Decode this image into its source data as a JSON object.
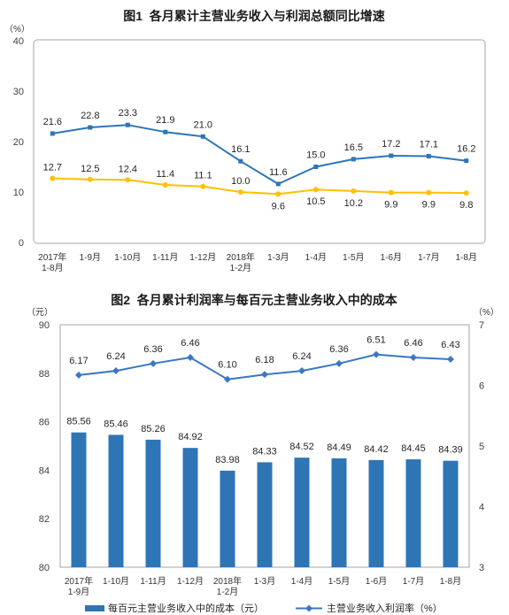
{
  "chart_data": [
    {
      "type": "line",
      "title": "图1  各月累计主营业务收入与利润总额同比增速",
      "ylabel": "（%）",
      "ylim": [
        0,
        40
      ],
      "yticks": [
        0,
        10,
        20,
        30,
        40
      ],
      "categories": [
        "2017年\n1-8月",
        "1-9月",
        "1-10月",
        "1-11月",
        "1-12月",
        "2018年\n1-2月",
        "1-3月",
        "1-4月",
        "1-5月",
        "1-6月",
        "1-7月",
        "1-8月"
      ],
      "series": [
        {
          "values": [
            21.6,
            22.8,
            23.3,
            21.9,
            21.0,
            16.1,
            11.6,
            15.0,
            16.5,
            17.2,
            17.1,
            16.2
          ],
          "color": "#2e75b6"
        },
        {
          "values": [
            12.7,
            12.5,
            12.4,
            11.4,
            11.1,
            10.0,
            9.6,
            10.5,
            10.2,
            9.9,
            9.9,
            9.8
          ],
          "color": "#ffc000"
        }
      ],
      "grid": false,
      "legend": "none"
    },
    {
      "type": "bar",
      "title": "图2  各月累计利润率与每百元主营业务收入中的成本",
      "ylabel": "（元）",
      "ylabel_right": "（%）",
      "ylim": [
        80,
        90
      ],
      "yticks": [
        80,
        82,
        84,
        86,
        88,
        90
      ],
      "ylim_right": [
        3,
        7
      ],
      "yticks_right": [
        3,
        4,
        5,
        6,
        7
      ],
      "categories": [
        "2017年\n1-9月",
        "1-10月",
        "1-11月",
        "1-12月",
        "2018年\n1-2月",
        "1-3月",
        "1-4月",
        "1-5月",
        "1-6月",
        "1-7月",
        "1-8月"
      ],
      "series": [
        {
          "name": "每百元主营业务收入中的成本（元）",
          "type": "bar",
          "values": [
            85.56,
            85.46,
            85.26,
            84.92,
            83.98,
            84.33,
            84.52,
            84.49,
            84.42,
            84.45,
            84.39
          ],
          "color": "#2e75b6"
        },
        {
          "name": "主营业务收入利润率（%）",
          "type": "line",
          "secondary_axis": true,
          "values": [
            6.17,
            6.24,
            6.36,
            6.46,
            6.1,
            6.18,
            6.24,
            6.36,
            6.51,
            6.46,
            6.43
          ],
          "color": "#3a78c4"
        }
      ],
      "grid": false,
      "legend": "bottom"
    }
  ]
}
